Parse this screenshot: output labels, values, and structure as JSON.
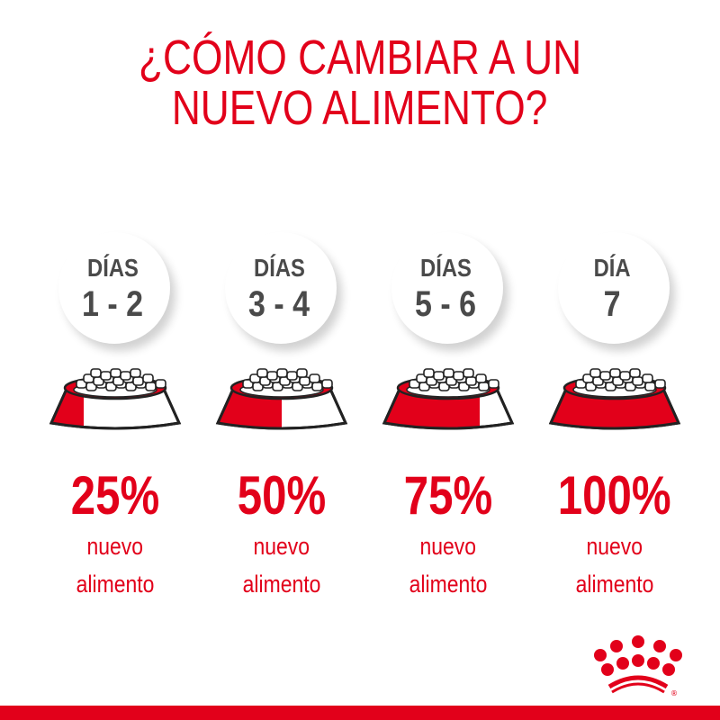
{
  "title": {
    "line1": "¿CÓMO CAMBIAR A UN",
    "line2": "NUEVO ALIMENTO?"
  },
  "colors": {
    "brand_red": "#e2001a",
    "text_gray": "#4a4a4a"
  },
  "steps": [
    {
      "label": "DÍAS",
      "days": "1 - 2",
      "percent": "25%",
      "new_food_fraction": 0.25,
      "line1": "nuevo",
      "line2": "alimento"
    },
    {
      "label": "DÍAS",
      "days": "3 - 4",
      "percent": "50%",
      "new_food_fraction": 0.5,
      "line1": "nuevo",
      "line2": "alimento"
    },
    {
      "label": "DÍAS",
      "days": "5 - 6",
      "percent": "75%",
      "new_food_fraction": 0.75,
      "line1": "nuevo",
      "line2": "alimento"
    },
    {
      "label": "DÍA",
      "days": "7",
      "percent": "100%",
      "new_food_fraction": 1.0,
      "line1": "nuevo",
      "line2": "alimento"
    }
  ],
  "logo": {
    "icon": "crown-icon",
    "mark": "®"
  }
}
